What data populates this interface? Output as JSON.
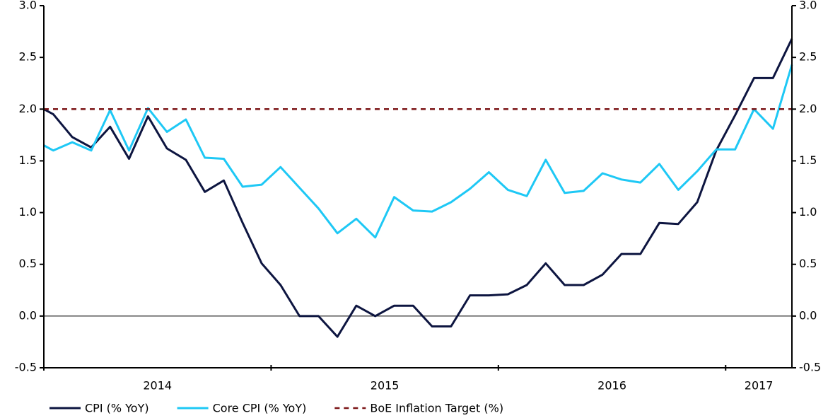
{
  "chart_data": {
    "type": "line",
    "xlim": [
      0,
      39.5
    ],
    "xticks": [
      0,
      12,
      24,
      36
    ],
    "x_labels": [
      {
        "value": 6,
        "label": "2014"
      },
      {
        "value": 18,
        "label": "2015"
      },
      {
        "value": 30,
        "label": "2016"
      },
      {
        "value": 37.75,
        "label": "2017"
      }
    ],
    "ylim": [
      -0.5,
      3.0
    ],
    "yticks": [
      {
        "value": -0.5,
        "label": "-0.5"
      },
      {
        "value": 0,
        "label": "0.0"
      },
      {
        "value": 0.5,
        "label": "0.5"
      },
      {
        "value": 1,
        "label": "1.0"
      },
      {
        "value": 1.5,
        "label": "1.5"
      },
      {
        "value": 2,
        "label": "2.0"
      },
      {
        "value": 2.5,
        "label": "2.5"
      },
      {
        "value": 3,
        "label": "3.0"
      }
    ],
    "y2lim": [
      -0.5,
      3.0
    ],
    "y2ticks": [
      {
        "value": -0.5,
        "label": "-0.5"
      },
      {
        "value": 0,
        "label": "0.0"
      },
      {
        "value": 0.5,
        "label": "0.5"
      },
      {
        "value": 1,
        "label": "1.0"
      },
      {
        "value": 1.5,
        "label": "1.5"
      },
      {
        "value": 2,
        "label": "2.0"
      },
      {
        "value": 2.5,
        "label": "2.5"
      },
      {
        "value": 3,
        "label": "3.0"
      }
    ],
    "legend": "bottom",
    "series": [
      {
        "name": "CPI (% YoY)",
        "color": "#0d1540",
        "x": [
          0,
          0.5,
          1.5,
          2.5,
          3.5,
          4.5,
          5.5,
          6.5,
          7.5,
          8.5,
          9.5,
          10.5,
          11.5,
          12.5,
          13.5,
          14.5,
          15.5,
          16.5,
          17.5,
          18.5,
          19.5,
          20.5,
          21.5,
          22.5,
          23.5,
          24.5,
          25.5,
          26.5,
          27.5,
          28.5,
          29.5,
          30.5,
          31.5,
          32.5,
          33.5,
          34.5,
          35.5,
          36.5,
          37.5,
          38.5,
          39.5
        ],
        "values": [
          2.0,
          1.95,
          1.73,
          1.63,
          1.83,
          1.52,
          1.93,
          1.62,
          1.51,
          1.2,
          1.31,
          0.9,
          0.51,
          0.3,
          0.0,
          0.0,
          -0.2,
          0.1,
          0.0,
          0.1,
          0.1,
          -0.1,
          -0.1,
          0.2,
          0.2,
          0.21,
          0.3,
          0.51,
          0.3,
          0.3,
          0.4,
          0.6,
          0.6,
          0.9,
          0.89,
          1.1,
          1.6,
          1.94,
          2.3,
          2.3,
          2.68
        ]
      },
      {
        "name": "Core CPI (% YoY)",
        "color": "#1ec8f5",
        "x": [
          0,
          0.5,
          1.5,
          2.5,
          3.5,
          4.5,
          5.5,
          6.5,
          7.5,
          8.5,
          9.5,
          10.5,
          11.5,
          12.5,
          13.5,
          14.5,
          15.5,
          16.5,
          17.5,
          18.5,
          19.5,
          20.5,
          21.5,
          22.5,
          23.5,
          24.5,
          25.5,
          26.5,
          27.5,
          28.5,
          29.5,
          30.5,
          31.5,
          32.5,
          33.5,
          34.5,
          35.5,
          36.5,
          37.5,
          38.5,
          39.5
        ],
        "values": [
          1.65,
          1.6,
          1.68,
          1.6,
          1.99,
          1.6,
          2.01,
          1.78,
          1.9,
          1.53,
          1.52,
          1.25,
          1.27,
          1.44,
          1.24,
          1.04,
          0.8,
          0.94,
          0.76,
          1.15,
          1.02,
          1.01,
          1.1,
          1.23,
          1.39,
          1.22,
          1.16,
          1.51,
          1.19,
          1.21,
          1.38,
          1.32,
          1.29,
          1.47,
          1.22,
          1.4,
          1.61,
          1.61,
          2.0,
          1.81,
          2.43
        ]
      },
      {
        "name": "BoE Inflation Target (%)",
        "color": "#7b1416",
        "dashed": true,
        "x": [
          0,
          39.5
        ],
        "values": [
          2.0,
          2.0
        ]
      }
    ]
  }
}
